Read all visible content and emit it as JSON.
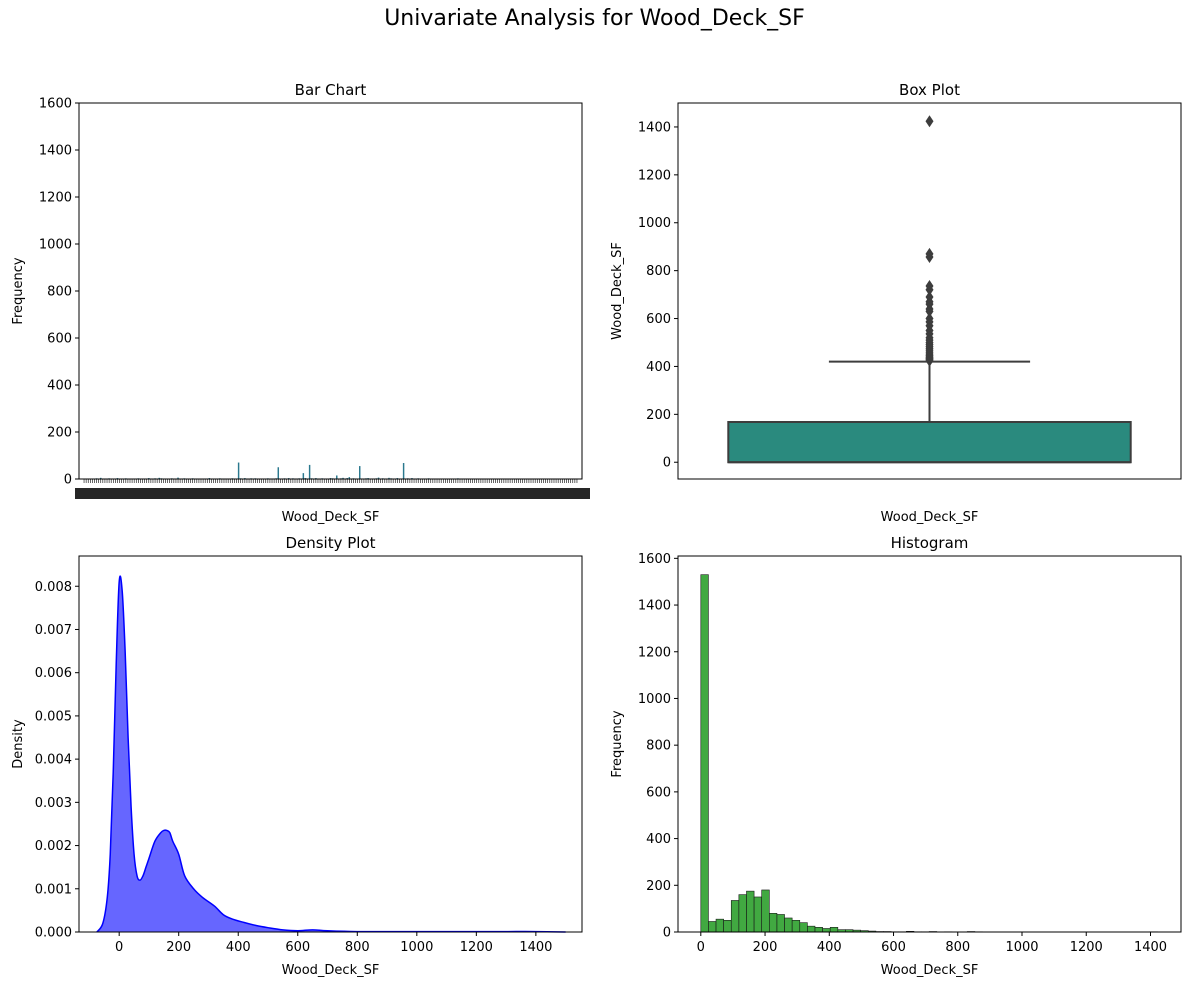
{
  "suptitle": "Univariate Analysis for Wood_Deck_SF",
  "chart_data": [
    {
      "type": "bar",
      "title": "Bar Chart",
      "xlabel": "Wood_Deck_SF",
      "ylabel": "Frequency",
      "ylim": [
        0,
        1600
      ],
      "yticks": [
        0,
        200,
        400,
        600,
        800,
        1000,
        1200,
        1400,
        1600
      ],
      "bar_color": "#2a788e",
      "note_x": "tick labels are overlapping and illegible (one per unique value)",
      "categories_count": 230,
      "values": [
        2,
        1,
        1,
        1,
        1,
        2,
        3,
        1,
        5,
        1,
        2,
        1,
        3,
        1,
        2,
        1,
        4,
        2,
        1,
        1,
        3,
        1,
        1,
        2,
        2,
        1,
        3,
        2,
        1,
        2,
        1,
        4,
        2,
        2,
        3,
        1,
        5,
        3,
        2,
        1,
        2,
        1,
        3,
        1,
        2,
        6,
        2,
        2,
        3,
        1,
        2,
        1,
        3,
        2,
        1,
        1,
        2,
        1,
        1,
        2,
        4,
        2,
        1,
        2,
        1,
        3,
        1,
        2,
        1,
        1,
        2,
        3,
        2,
        1,
        70,
        3,
        2,
        4,
        1,
        2,
        3,
        2,
        3,
        1,
        1,
        2,
        1,
        2,
        3,
        1,
        2,
        1,
        3,
        50,
        2,
        1,
        3,
        2,
        4,
        1,
        3,
        2,
        2,
        3,
        1,
        25,
        4,
        2,
        60,
        3,
        2,
        4,
        1,
        2,
        3,
        1,
        2,
        1,
        4,
        3,
        2,
        15,
        2,
        3,
        5,
        1,
        4,
        8,
        2,
        3,
        1,
        2,
        55,
        2,
        1,
        3,
        4,
        2,
        2,
        1,
        3,
        6,
        2,
        3,
        1,
        2,
        5,
        3,
        1,
        2,
        4,
        1,
        2,
        68,
        2,
        3,
        1,
        4,
        2,
        1,
        3,
        2,
        1,
        1,
        2,
        3,
        1,
        2,
        1,
        2,
        1,
        1,
        2,
        1,
        1,
        1,
        2,
        1,
        1,
        3,
        1,
        1,
        1,
        1,
        2,
        1,
        1,
        1,
        1,
        1,
        1,
        2,
        1,
        1,
        1,
        1,
        1,
        1,
        1,
        1,
        1,
        1,
        1,
        1,
        1,
        1,
        1,
        1,
        1,
        1,
        1,
        1,
        1,
        1,
        1,
        1,
        1,
        1,
        1,
        1,
        1,
        1,
        1,
        1,
        1,
        1,
        1,
        1,
        1,
        1,
        1,
        1,
        1,
        1,
        1,
        1,
        1
      ]
    },
    {
      "type": "box",
      "title": "Box Plot",
      "xlabel": "Wood_Deck_SF",
      "ylabel": "Wood_Deck_SF",
      "ylim": [
        -70,
        1500
      ],
      "yticks": [
        0,
        200,
        400,
        600,
        800,
        1000,
        1200,
        1400
      ],
      "box_color": "#2a8a7e",
      "min": 0,
      "q1": 0,
      "median": 0,
      "q3": 168,
      "whisker_high": 420,
      "outliers": [
        424,
        428,
        432,
        436,
        440,
        446,
        452,
        460,
        468,
        476,
        484,
        492,
        500,
        510,
        520,
        536,
        550,
        570,
        586,
        600,
        630,
        640,
        660,
        670,
        690,
        720,
        736,
        857,
        870,
        1424
      ]
    },
    {
      "type": "area",
      "title": "Density Plot",
      "xlabel": "Wood_Deck_SF",
      "ylabel": "Density",
      "xlim": [
        -135,
        1555
      ],
      "ylim": [
        0,
        0.0087
      ],
      "xticks": [
        0,
        200,
        400,
        600,
        800,
        1000,
        1200,
        1400
      ],
      "yticks": [
        0.0,
        0.001,
        0.002,
        0.003,
        0.004,
        0.005,
        0.006,
        0.007,
        0.008
      ],
      "fill_color": "#0000ff",
      "x": [
        -75,
        -55,
        -40,
        -30,
        -20,
        -10,
        0,
        10,
        20,
        30,
        40,
        50,
        60,
        70,
        80,
        90,
        100,
        120,
        140,
        150,
        160,
        170,
        180,
        200,
        220,
        250,
        280,
        320,
        350,
        380,
        420,
        460,
        500,
        550,
        600,
        650,
        700,
        800,
        900,
        1000,
        1100,
        1200,
        1300,
        1400,
        1500
      ],
      "y": [
        0.0,
        0.0002,
        0.0008,
        0.0018,
        0.0037,
        0.0062,
        0.0081,
        0.0079,
        0.0065,
        0.0045,
        0.0029,
        0.0018,
        0.0013,
        0.0012,
        0.0013,
        0.0015,
        0.0017,
        0.0021,
        0.0023,
        0.00235,
        0.00235,
        0.0023,
        0.0021,
        0.0018,
        0.0013,
        0.001,
        0.0008,
        0.0006,
        0.0004,
        0.0003,
        0.00022,
        0.00015,
        0.0001,
        5e-05,
        3e-05,
        5e-05,
        3e-05,
        1e-05,
        1e-05,
        1e-05,
        1e-05,
        1e-05,
        1e-05,
        1e-05,
        0.0
      ]
    },
    {
      "type": "bar",
      "title": "Histogram",
      "xlabel": "Wood_Deck_SF",
      "ylabel": "Frequency",
      "xlim": [
        -71,
        1495
      ],
      "ylim": [
        0,
        1610
      ],
      "xticks": [
        0,
        200,
        400,
        600,
        800,
        1000,
        1200,
        1400
      ],
      "yticks": [
        0,
        200,
        400,
        600,
        800,
        1000,
        1200,
        1400,
        1600
      ],
      "bar_color": "#2ca02c",
      "bin_start": 0,
      "bin_width": 23.7,
      "values": [
        1530,
        45,
        55,
        50,
        135,
        160,
        175,
        150,
        180,
        80,
        75,
        60,
        50,
        40,
        25,
        20,
        15,
        20,
        10,
        10,
        8,
        6,
        4,
        2,
        2,
        1,
        1,
        3,
        1,
        1,
        2,
        0,
        1,
        0,
        0,
        2,
        1,
        0,
        0,
        0,
        0,
        0,
        0,
        0,
        0,
        0,
        0,
        0,
        0,
        0,
        0,
        0,
        0,
        0,
        0,
        0,
        0,
        0,
        0,
        1
      ]
    }
  ]
}
